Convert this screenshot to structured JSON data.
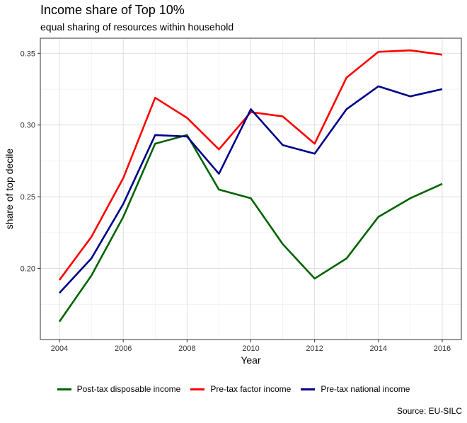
{
  "chart_data": {
    "type": "line",
    "title": "Income share of Top 10%",
    "subtitle": "equal sharing of resources within household",
    "xlabel": "Year",
    "ylabel": "share of top decile",
    "caption": "Source: EU-SILC",
    "x": [
      2004,
      2005,
      2006,
      2007,
      2008,
      2009,
      2010,
      2011,
      2012,
      2013,
      2014,
      2015,
      2016
    ],
    "xlim": [
      2003.4,
      2016.6
    ],
    "ylim": [
      0.1505,
      0.3605
    ],
    "x_ticks": [
      2004,
      2006,
      2008,
      2010,
      2012,
      2014,
      2016
    ],
    "y_ticks": [
      0.2,
      0.25,
      0.3,
      0.35
    ],
    "x_tick_labels": [
      "2004",
      "2006",
      "2008",
      "2010",
      "2012",
      "2014",
      "2016"
    ],
    "y_tick_labels": [
      "0.20",
      "0.25",
      "0.30",
      "0.35"
    ],
    "grid": true,
    "legend_position": "bottom",
    "series": [
      {
        "name": "Post-tax disposable income",
        "color": "#006400",
        "values": [
          0.163,
          0.195,
          0.236,
          0.287,
          0.293,
          0.255,
          0.249,
          0.217,
          0.193,
          0.207,
          0.236,
          0.249,
          0.259
        ]
      },
      {
        "name": "Pre-tax factor income",
        "color": "#ff0000",
        "values": [
          0.192,
          0.222,
          0.263,
          0.319,
          0.305,
          0.283,
          0.309,
          0.306,
          0.287,
          0.333,
          0.351,
          0.352,
          0.349
        ]
      },
      {
        "name": "Pre-tax national income",
        "color": "#00008b",
        "values": [
          0.183,
          0.207,
          0.245,
          0.293,
          0.292,
          0.266,
          0.311,
          0.286,
          0.28,
          0.311,
          0.327,
          0.32,
          0.325
        ]
      }
    ]
  }
}
